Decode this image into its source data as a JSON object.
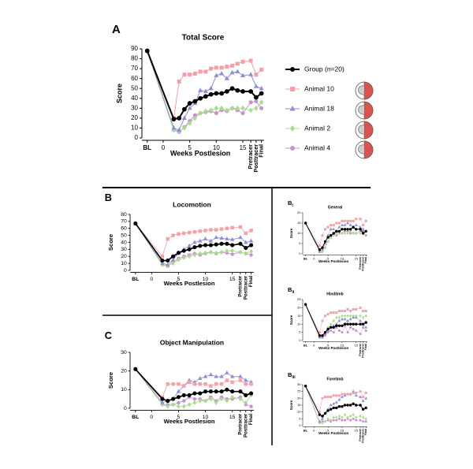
{
  "chart_data": [
    {
      "type": "line",
      "panel": "A",
      "title": "Total Score",
      "ylabel": "Score",
      "xlabel": "Weeks Postlesion",
      "legend": true,
      "x": [
        -3,
        2,
        3,
        4,
        5,
        6,
        7,
        8,
        9,
        10,
        11,
        12,
        13,
        14,
        15,
        16.5,
        17.5,
        18.5
      ],
      "xlim": [
        -4,
        19
      ],
      "xticks": [
        {
          "value": -3,
          "label": "BL"
        },
        0,
        5,
        10,
        15,
        {
          "value": 16.5,
          "label": "Pretracer"
        },
        {
          "value": 17.5,
          "label": "Posttracer"
        },
        {
          "value": 18.5,
          "label": "Final"
        }
      ],
      "ylim": [
        0,
        90
      ],
      "yticks": [
        0,
        10,
        20,
        30,
        40,
        50,
        60,
        70,
        80,
        90
      ],
      "series": [
        {
          "name": "Group (n=20)",
          "color": "#000000",
          "marker": "circle",
          "values": [
            88,
            19,
            20,
            29,
            35,
            37,
            40,
            42,
            44,
            45,
            45,
            47,
            50,
            48,
            47,
            47,
            41,
            45
          ]
        },
        {
          "name": "Animal 10",
          "color": "#f4a0a8",
          "marker": "square",
          "values": [
            88,
            20,
            57,
            64,
            64,
            65,
            67,
            67,
            70,
            71,
            71,
            72,
            73,
            75,
            77,
            78,
            64,
            69
          ]
        },
        {
          "name": "Animal 18",
          "color": "#8f8fd0",
          "marker": "triangle",
          "values": [
            88,
            10,
            8,
            20,
            30,
            35,
            48,
            47,
            50,
            63,
            65,
            60,
            66,
            67,
            63,
            64,
            52,
            50
          ]
        },
        {
          "name": "Animal 2",
          "color": "#a8dc90",
          "marker": "diamond",
          "values": [
            88,
            8,
            7,
            10,
            15,
            20,
            25,
            27,
            28,
            30,
            30,
            28,
            30,
            30,
            30,
            28,
            30,
            36
          ]
        },
        {
          "name": "Animal 4",
          "color": "#c890cc",
          "marker": "circle",
          "values": [
            88,
            8,
            6,
            11,
            17,
            23,
            25,
            26,
            27,
            25,
            28,
            27,
            30,
            28,
            25,
            36,
            37,
            30
          ]
        }
      ]
    },
    {
      "type": "line",
      "panel": "B",
      "title": "Locomotion",
      "ylabel": "Score",
      "xlabel": "Weeks Postlesion",
      "x": [
        -3,
        2,
        3,
        4,
        5,
        6,
        7,
        8,
        9,
        10,
        11,
        12,
        13,
        14,
        15,
        16.5,
        17.5,
        18.5
      ],
      "xlim": [
        -4,
        19
      ],
      "xticks": [
        {
          "value": -3,
          "label": "BL"
        },
        0,
        5,
        10,
        15,
        {
          "value": 16.5,
          "label": "Pretracer"
        },
        {
          "value": 17.5,
          "label": "Posttracer"
        },
        {
          "value": 18.5,
          "label": "Final"
        }
      ],
      "ylim": [
        0,
        80
      ],
      "yticks": [
        0,
        10,
        20,
        30,
        40,
        50,
        60,
        70,
        80
      ],
      "series": [
        {
          "color": "#000000",
          "marker": "circle",
          "values": [
            67,
            14,
            14,
            20,
            25,
            28,
            30,
            33,
            35,
            36,
            36,
            37,
            38,
            38,
            36,
            38,
            32,
            36
          ]
        },
        {
          "color": "#f4a0a8",
          "marker": "square",
          "values": [
            67,
            20,
            45,
            50,
            52,
            53,
            54,
            55,
            56,
            57,
            58,
            58,
            59,
            60,
            61,
            62,
            53,
            57
          ]
        },
        {
          "color": "#8f8fd0",
          "marker": "triangle",
          "values": [
            67,
            10,
            8,
            15,
            25,
            30,
            35,
            40,
            42,
            45,
            42,
            47,
            46,
            45,
            44,
            47,
            40,
            42
          ]
        },
        {
          "color": "#a8dc90",
          "marker": "diamond",
          "values": [
            67,
            8,
            7,
            10,
            15,
            18,
            20,
            22,
            24,
            25,
            26,
            25,
            26,
            28,
            28,
            26,
            24,
            27
          ]
        },
        {
          "color": "#c890cc",
          "marker": "circle",
          "values": [
            67,
            8,
            6,
            12,
            17,
            20,
            22,
            24,
            22,
            24,
            26,
            24,
            26,
            25,
            23,
            26,
            24,
            22
          ]
        }
      ]
    },
    {
      "type": "line",
      "panel": "C",
      "title": "Object Manipulation",
      "ylabel": "Score",
      "xlabel": "Weeks Postlesion",
      "x": [
        -3,
        2,
        3,
        4,
        5,
        6,
        7,
        8,
        9,
        10,
        11,
        12,
        13,
        14,
        15,
        16.5,
        17.5,
        18.5
      ],
      "xlim": [
        -4,
        19
      ],
      "xticks": [
        {
          "value": -3,
          "label": "BL"
        },
        0,
        5,
        10,
        15,
        {
          "value": 16.5,
          "label": "Pretracer"
        },
        {
          "value": 17.5,
          "label": "Posttracer"
        },
        {
          "value": 18.5,
          "label": "Final"
        }
      ],
      "ylim": [
        0,
        30
      ],
      "yticks": [
        0,
        10,
        20,
        30
      ],
      "series": [
        {
          "color": "#000000",
          "marker": "circle",
          "values": [
            21,
            5,
            4,
            5,
            6,
            7,
            7,
            8,
            8,
            9,
            9,
            9,
            9,
            10,
            9,
            9,
            7,
            8
          ]
        },
        {
          "color": "#f4a0a8",
          "marker": "square",
          "values": [
            21,
            6,
            13,
            13,
            13,
            12,
            14,
            13,
            13,
            13,
            12,
            13,
            13,
            15,
            14,
            15,
            13,
            13
          ]
        },
        {
          "color": "#8f8fd0",
          "marker": "triangle",
          "values": [
            21,
            3,
            4,
            5,
            9,
            12,
            15,
            14,
            16,
            17,
            18,
            17,
            17,
            19,
            17,
            17,
            15,
            14
          ]
        },
        {
          "color": "#a8dc90",
          "marker": "diamond",
          "values": [
            21,
            2,
            1,
            2,
            1,
            1,
            2,
            3,
            4,
            4,
            5,
            3,
            5,
            4,
            6,
            5,
            3,
            7
          ]
        },
        {
          "color": "#c890cc",
          "marker": "circle",
          "values": [
            21,
            2,
            2,
            2,
            3,
            4,
            6,
            5,
            5,
            4,
            6,
            4,
            6,
            5,
            5,
            6,
            2,
            1
          ]
        }
      ]
    },
    {
      "type": "line",
      "panel": "B",
      "panel_sub": "i",
      "title": "General",
      "ylabel": "Score",
      "xlabel": "Weeks Postlesion",
      "x": [
        -3,
        2,
        3,
        4,
        5,
        6,
        7,
        8,
        9,
        10,
        11,
        12,
        13,
        14,
        15,
        16.5,
        17.5,
        18.5
      ],
      "xlim": [
        -4,
        19
      ],
      "xticks": [
        {
          "value": -3,
          "label": "BL"
        },
        0,
        5,
        10,
        15,
        {
          "value": 16.5,
          "label": "Pretracer"
        },
        {
          "value": 17.5,
          "label": "Posttracer"
        },
        {
          "value": 18.5,
          "label": "Final"
        }
      ],
      "ylim": [
        0,
        20
      ],
      "yticks": [
        0,
        5,
        10,
        15,
        20
      ],
      "series": [
        {
          "color": "#000000",
          "marker": "circle",
          "values": [
            15,
            2,
            3,
            6,
            8,
            9,
            10,
            11,
            11,
            12,
            12,
            12,
            12,
            13,
            12,
            12,
            10,
            11
          ]
        },
        {
          "color": "#f4a0a8",
          "marker": "square",
          "values": [
            15,
            4,
            9,
            12,
            13,
            14,
            14,
            15,
            15,
            16,
            16,
            16,
            16,
            16,
            17,
            17,
            14,
            16
          ]
        },
        {
          "color": "#8f8fd0",
          "marker": "triangle",
          "values": [
            15,
            1,
            2,
            5,
            9,
            12,
            12,
            11,
            13,
            14,
            14,
            15,
            14,
            13,
            14,
            13,
            12,
            11
          ]
        },
        {
          "color": "#a8dc90",
          "marker": "diamond",
          "values": [
            15,
            1,
            1,
            3,
            6,
            8,
            9,
            10,
            10,
            10,
            10,
            10,
            11,
            10,
            10,
            10,
            10,
            11
          ]
        },
        {
          "color": "#c890cc",
          "marker": "circle",
          "values": [
            15,
            1,
            1,
            3,
            6,
            8,
            10,
            9,
            10,
            10,
            11,
            11,
            10,
            10,
            10,
            11,
            11,
            9
          ]
        }
      ]
    },
    {
      "type": "line",
      "panel": "B",
      "panel_sub": "ii",
      "title": "Hindlimb",
      "ylabel": "Score",
      "xlabel": "Weeks Postlesion",
      "x": [
        -3,
        2,
        3,
        4,
        5,
        6,
        7,
        8,
        9,
        10,
        11,
        12,
        13,
        14,
        15,
        16.5,
        17.5,
        18.5
      ],
      "xlim": [
        -4,
        19
      ],
      "xticks": [
        {
          "value": -3,
          "label": "BL"
        },
        0,
        5,
        10,
        15,
        {
          "value": 16.5,
          "label": "Pretracer"
        },
        {
          "value": 17.5,
          "label": "Posttracer"
        },
        {
          "value": 18.5,
          "label": "Final"
        }
      ],
      "ylim": [
        0,
        25
      ],
      "yticks": [
        0,
        5,
        10,
        15,
        20,
        25
      ],
      "series": [
        {
          "color": "#000000",
          "marker": "circle",
          "values": [
            22,
            3,
            3,
            5,
            7,
            8,
            8,
            9,
            9,
            9,
            10,
            10,
            10,
            10,
            10,
            10,
            10,
            11
          ]
        },
        {
          "color": "#f4a0a8",
          "marker": "square",
          "values": [
            22,
            5,
            12,
            15,
            16,
            17,
            17,
            17,
            18,
            18,
            18,
            19,
            18,
            19,
            19,
            20,
            18,
            18
          ]
        },
        {
          "color": "#8f8fd0",
          "marker": "triangle",
          "values": [
            22,
            2,
            2,
            4,
            6,
            8,
            9,
            10,
            12,
            13,
            13,
            12,
            13,
            14,
            14,
            12,
            10,
            8
          ]
        },
        {
          "color": "#a8dc90",
          "marker": "diamond",
          "values": [
            22,
            2,
            2,
            4,
            8,
            10,
            12,
            14,
            14,
            15,
            15,
            15,
            15,
            15,
            15,
            15,
            14,
            15
          ]
        },
        {
          "color": "#c890cc",
          "marker": "circle",
          "values": [
            22,
            2,
            2,
            3,
            5,
            6,
            5,
            8,
            6,
            5,
            9,
            5,
            8,
            7,
            6,
            4,
            8,
            6
          ]
        }
      ]
    },
    {
      "type": "line",
      "panel": "B",
      "panel_sub": "iii",
      "title": "Forelimb",
      "ylabel": "Score",
      "xlabel": "Weeks Postlesion",
      "x": [
        -3,
        2,
        3,
        4,
        5,
        6,
        7,
        8,
        9,
        10,
        11,
        12,
        13,
        14,
        15,
        16.5,
        17.5,
        18.5
      ],
      "xlim": [
        -4,
        19
      ],
      "xticks": [
        {
          "value": -3,
          "label": "BL"
        },
        0,
        5,
        10,
        15,
        {
          "value": 16.5,
          "label": "Pretracer"
        },
        {
          "value": 17.5,
          "label": "Posttracer"
        },
        {
          "value": 18.5,
          "label": "Final"
        }
      ],
      "ylim": [
        0,
        30
      ],
      "yticks": [
        0,
        5,
        10,
        15,
        20,
        25,
        30
      ],
      "series": [
        {
          "color": "#000000",
          "marker": "circle",
          "values": [
            29,
            8,
            7,
            9,
            11,
            12,
            13,
            13,
            14,
            14,
            15,
            15,
            15,
            16,
            15,
            15,
            12,
            13
          ]
        },
        {
          "color": "#f4a0a8",
          "marker": "square",
          "values": [
            29,
            10,
            20,
            21,
            21,
            21,
            22,
            22,
            22,
            23,
            23,
            23,
            23,
            24,
            24,
            25,
            21,
            24
          ]
        },
        {
          "color": "#8f8fd0",
          "marker": "triangle",
          "values": [
            29,
            3,
            5,
            9,
            12,
            15,
            16,
            17,
            19,
            21,
            22,
            23,
            23,
            25,
            22,
            21,
            18,
            20
          ]
        },
        {
          "color": "#a8dc90",
          "marker": "diamond",
          "values": [
            29,
            2,
            2,
            3,
            5,
            4,
            6,
            6,
            7,
            6,
            8,
            6,
            7,
            8,
            6,
            7,
            6,
            5
          ]
        },
        {
          "color": "#c890cc",
          "marker": "circle",
          "values": [
            29,
            2,
            3,
            3,
            4,
            3,
            4,
            4,
            5,
            4,
            4,
            5,
            4,
            5,
            4,
            4,
            3,
            3
          ]
        }
      ]
    }
  ]
}
